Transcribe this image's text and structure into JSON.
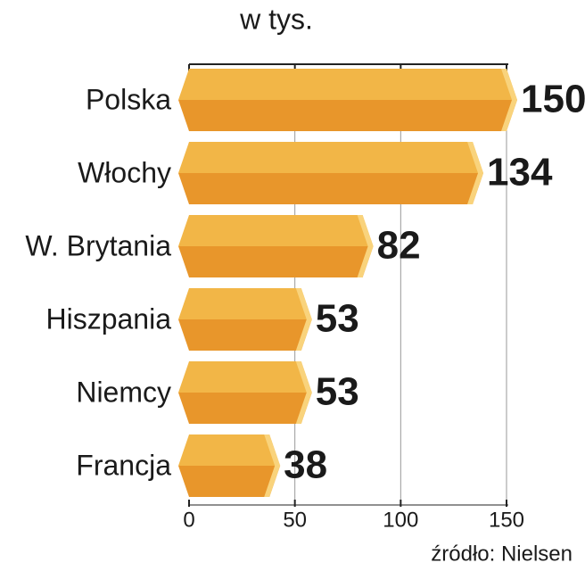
{
  "chart_data": {
    "type": "bar",
    "orientation": "horizontal",
    "title": "w tys.",
    "source": "źródło: Nielsen",
    "categories": [
      "Polska",
      "Włochy",
      "W. Brytania",
      "Hiszpania",
      "Niemcy",
      "Francja"
    ],
    "values": [
      150,
      134,
      82,
      53,
      53,
      38
    ],
    "colors": {
      "top": "#f2b647",
      "bottom": "#e8962b",
      "cap": "#f9d37c"
    },
    "xlim": [
      0,
      150
    ],
    "xticks": [
      0,
      50,
      100,
      150
    ],
    "grid": true
  }
}
